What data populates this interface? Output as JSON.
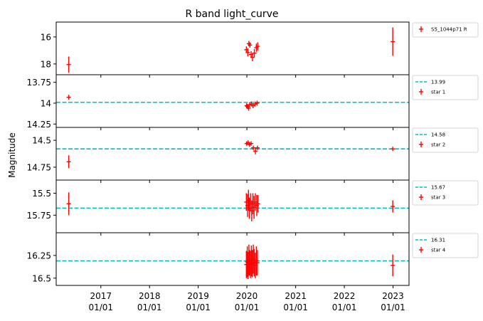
{
  "figure": {
    "title": "R band light_curve",
    "ylabel": "Magnitude"
  },
  "chart_data": [
    {
      "type": "scatter",
      "panel": "source",
      "y_inverted": true,
      "ylim": [
        18.8,
        14.9
      ],
      "yticks": [
        16,
        18
      ],
      "xlim": [
        "2016-02-01",
        "2023-05-01"
      ],
      "xticks": [
        {
          "date": "2017-01-01",
          "year": "2017",
          "day": "01/01"
        },
        {
          "date": "2018-01-01",
          "year": "2018",
          "day": "01/01"
        },
        {
          "date": "2019-01-01",
          "year": "2019",
          "day": "01/01"
        },
        {
          "date": "2020-01-01",
          "year": "2020",
          "day": "01/01"
        },
        {
          "date": "2021-01-01",
          "year": "2021",
          "day": "01/01"
        },
        {
          "date": "2022-01-01",
          "year": "2022",
          "day": "01/01"
        },
        {
          "date": "2023-01-01",
          "year": "2023",
          "day": "01/01"
        }
      ],
      "series": [
        {
          "name": "S5_1044p71 R",
          "color": "#ff0000",
          "marker": "errorbar-plus",
          "points": [
            {
              "x": "2016-05-05",
              "y": 18.05,
              "err": 0.6
            },
            {
              "x": "2019-12-28",
              "y": 16.95,
              "err": 0.25
            },
            {
              "x": "2020-01-08",
              "y": 17.15,
              "err": 0.3
            },
            {
              "x": "2020-01-16",
              "y": 16.5,
              "err": 0.2
            },
            {
              "x": "2020-01-24",
              "y": 16.6,
              "err": 0.2
            },
            {
              "x": "2020-02-02",
              "y": 17.3,
              "err": 0.25
            },
            {
              "x": "2020-02-12",
              "y": 17.5,
              "err": 0.3
            },
            {
              "x": "2020-02-26",
              "y": 17.2,
              "err": 0.3
            },
            {
              "x": "2020-03-12",
              "y": 16.8,
              "err": 0.3
            },
            {
              "x": "2020-03-22",
              "y": 16.7,
              "err": 0.3
            },
            {
              "x": "2022-12-30",
              "y": 16.35,
              "err": 1.05
            }
          ]
        }
      ]
    },
    {
      "type": "scatter",
      "panel": "comparison",
      "y_inverted": true,
      "ylim": [
        14.29,
        13.66
      ],
      "yticks": [
        13.75,
        14.0,
        14.25
      ],
      "reference_line": {
        "value": 13.99,
        "label": "13.99",
        "color": "#00bfbf",
        "style": "dashed"
      },
      "series": [
        {
          "name": "star 1",
          "color": "#ff0000",
          "marker": "errorbar-plus",
          "points": [
            {
              "x": "2016-05-05",
              "y": 13.93,
              "err": 0.03
            },
            {
              "x": "2019-12-30",
              "y": 14.03,
              "err": 0.03
            },
            {
              "x": "2020-01-06",
              "y": 14.04,
              "err": 0.03
            },
            {
              "x": "2020-01-14",
              "y": 14.06,
              "err": 0.03
            },
            {
              "x": "2020-01-22",
              "y": 14.02,
              "err": 0.03
            },
            {
              "x": "2020-02-04",
              "y": 14.01,
              "err": 0.03
            },
            {
              "x": "2020-02-16",
              "y": 14.03,
              "err": 0.03
            },
            {
              "x": "2020-03-02",
              "y": 14.01,
              "err": 0.03
            },
            {
              "x": "2020-03-18",
              "y": 14.0,
              "err": 0.03
            }
          ]
        }
      ]
    },
    {
      "type": "scatter",
      "panel": "comparison",
      "y_inverted": true,
      "ylim": [
        14.87,
        14.38
      ],
      "yticks": [
        14.5,
        14.75
      ],
      "reference_line": {
        "value": 14.58,
        "label": "14.58",
        "color": "#00bfbf",
        "style": "dashed"
      },
      "series": [
        {
          "name": "star 2",
          "color": "#ff0000",
          "marker": "errorbar-plus",
          "points": [
            {
              "x": "2016-05-05",
              "y": 14.7,
              "err": 0.06
            },
            {
              "x": "2019-12-30",
              "y": 14.53,
              "err": 0.02
            },
            {
              "x": "2020-01-10",
              "y": 14.52,
              "err": 0.02
            },
            {
              "x": "2020-01-20",
              "y": 14.54,
              "err": 0.02
            },
            {
              "x": "2020-02-02",
              "y": 14.53,
              "err": 0.02
            },
            {
              "x": "2020-02-18",
              "y": 14.57,
              "err": 0.02
            },
            {
              "x": "2020-03-05",
              "y": 14.6,
              "err": 0.03
            },
            {
              "x": "2020-03-20",
              "y": 14.57,
              "err": 0.02
            },
            {
              "x": "2022-12-30",
              "y": 14.58,
              "err": 0.02
            }
          ]
        }
      ]
    },
    {
      "type": "scatter",
      "panel": "comparison",
      "y_inverted": true,
      "ylim": [
        15.95,
        15.35
      ],
      "yticks": [
        15.5,
        15.75
      ],
      "reference_line": {
        "value": 15.67,
        "label": "15.67",
        "color": "#00bfbf",
        "style": "dashed"
      },
      "series": [
        {
          "name": "star 3",
          "color": "#ff0000",
          "marker": "errorbar-plus",
          "points": [
            {
              "x": "2016-05-05",
              "y": 15.62,
              "err": 0.13
            },
            {
              "x": "2019-12-28",
              "y": 15.6,
              "err": 0.1
            },
            {
              "x": "2020-01-06",
              "y": 15.64,
              "err": 0.13
            },
            {
              "x": "2020-01-13",
              "y": 15.58,
              "err": 0.12
            },
            {
              "x": "2020-01-20",
              "y": 15.67,
              "err": 0.12
            },
            {
              "x": "2020-01-28",
              "y": 15.6,
              "err": 0.1
            },
            {
              "x": "2020-02-06",
              "y": 15.7,
              "err": 0.12
            },
            {
              "x": "2020-02-15",
              "y": 15.62,
              "err": 0.12
            },
            {
              "x": "2020-02-24",
              "y": 15.66,
              "err": 0.13
            },
            {
              "x": "2020-03-05",
              "y": 15.6,
              "err": 0.1
            },
            {
              "x": "2020-03-15",
              "y": 15.64,
              "err": 0.12
            },
            {
              "x": "2020-03-24",
              "y": 15.62,
              "err": 0.1
            },
            {
              "x": "2022-12-30",
              "y": 15.65,
              "err": 0.07
            }
          ]
        }
      ]
    },
    {
      "type": "scatter",
      "panel": "comparison",
      "y_inverted": true,
      "ylim": [
        16.58,
        16.0
      ],
      "yticks": [
        16.25,
        16.5
      ],
      "reference_line": {
        "value": 16.31,
        "label": "16.31",
        "color": "#00bfbf",
        "style": "dashed"
      },
      "series": [
        {
          "name": "star 4",
          "color": "#ff0000",
          "marker": "errorbar-plus",
          "points": [
            {
              "x": "2019-12-28",
              "y": 16.35,
              "err": 0.15
            },
            {
              "x": "2020-01-04",
              "y": 16.32,
              "err": 0.17
            },
            {
              "x": "2020-01-10",
              "y": 16.36,
              "err": 0.15
            },
            {
              "x": "2020-01-16",
              "y": 16.3,
              "err": 0.17
            },
            {
              "x": "2020-01-22",
              "y": 16.33,
              "err": 0.14
            },
            {
              "x": "2020-01-28",
              "y": 16.35,
              "err": 0.15
            },
            {
              "x": "2020-02-04",
              "y": 16.31,
              "err": 0.17
            },
            {
              "x": "2020-02-11",
              "y": 16.34,
              "err": 0.15
            },
            {
              "x": "2020-02-18",
              "y": 16.29,
              "err": 0.16
            },
            {
              "x": "2020-02-25",
              "y": 16.33,
              "err": 0.15
            },
            {
              "x": "2020-03-04",
              "y": 16.36,
              "err": 0.14
            },
            {
              "x": "2020-03-12",
              "y": 16.31,
              "err": 0.16
            },
            {
              "x": "2020-03-20",
              "y": 16.33,
              "err": 0.14
            },
            {
              "x": "2022-12-30",
              "y": 16.36,
              "err": 0.12
            }
          ]
        }
      ]
    }
  ]
}
